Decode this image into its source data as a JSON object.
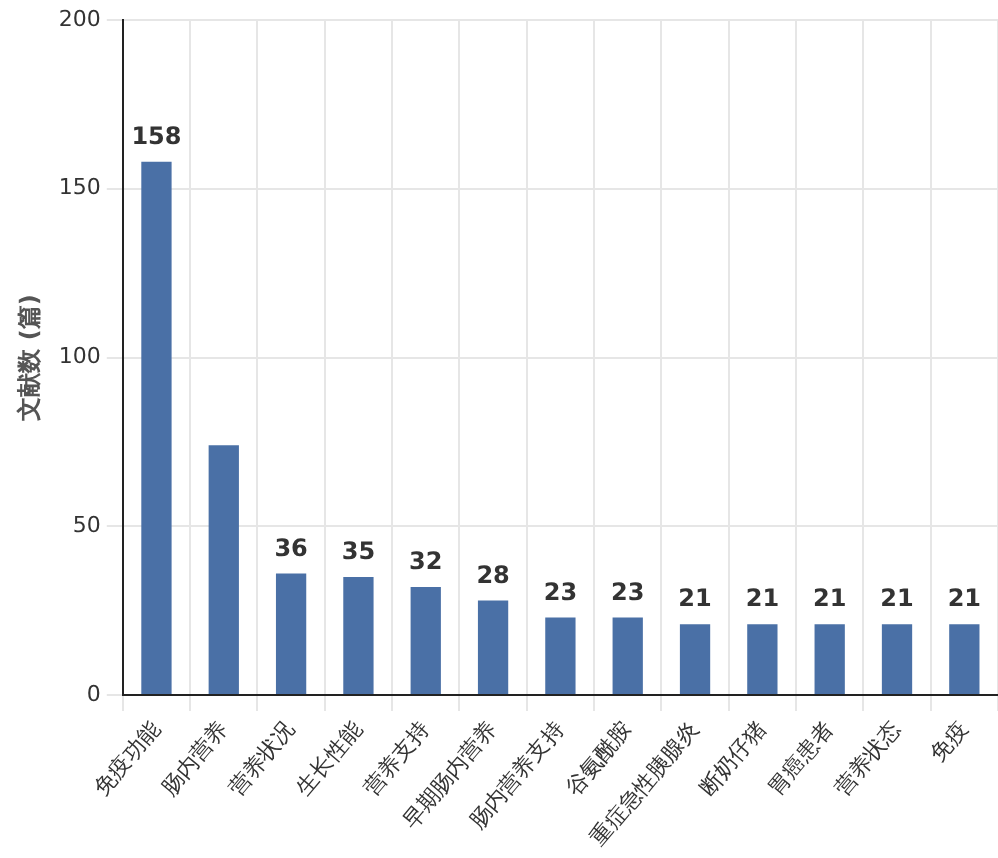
{
  "chart_data": {
    "type": "bar",
    "ylabel": "文献数 (篇)",
    "categories": [
      "免疫功能",
      "肠内营养",
      "营养状况",
      "生长性能",
      "营养支持",
      "早期肠内营养",
      "肠内营养支持",
      "谷氨酰胺",
      "重症急性胰腺炎",
      "断奶仔猪",
      "胃癌患者",
      "营养状态",
      "免疫"
    ],
    "values": [
      158,
      74,
      36,
      35,
      32,
      28,
      23,
      23,
      21,
      21,
      21,
      21,
      21
    ],
    "value_labels": [
      "158",
      null,
      "36",
      "35",
      "32",
      "28",
      "23",
      "23",
      "21",
      "21",
      "21",
      "21",
      "21"
    ],
    "color": "#4a70a6",
    "ylim": [
      0,
      200
    ],
    "yticks": [
      0,
      50,
      100,
      150,
      200
    ],
    "grid": true
  }
}
